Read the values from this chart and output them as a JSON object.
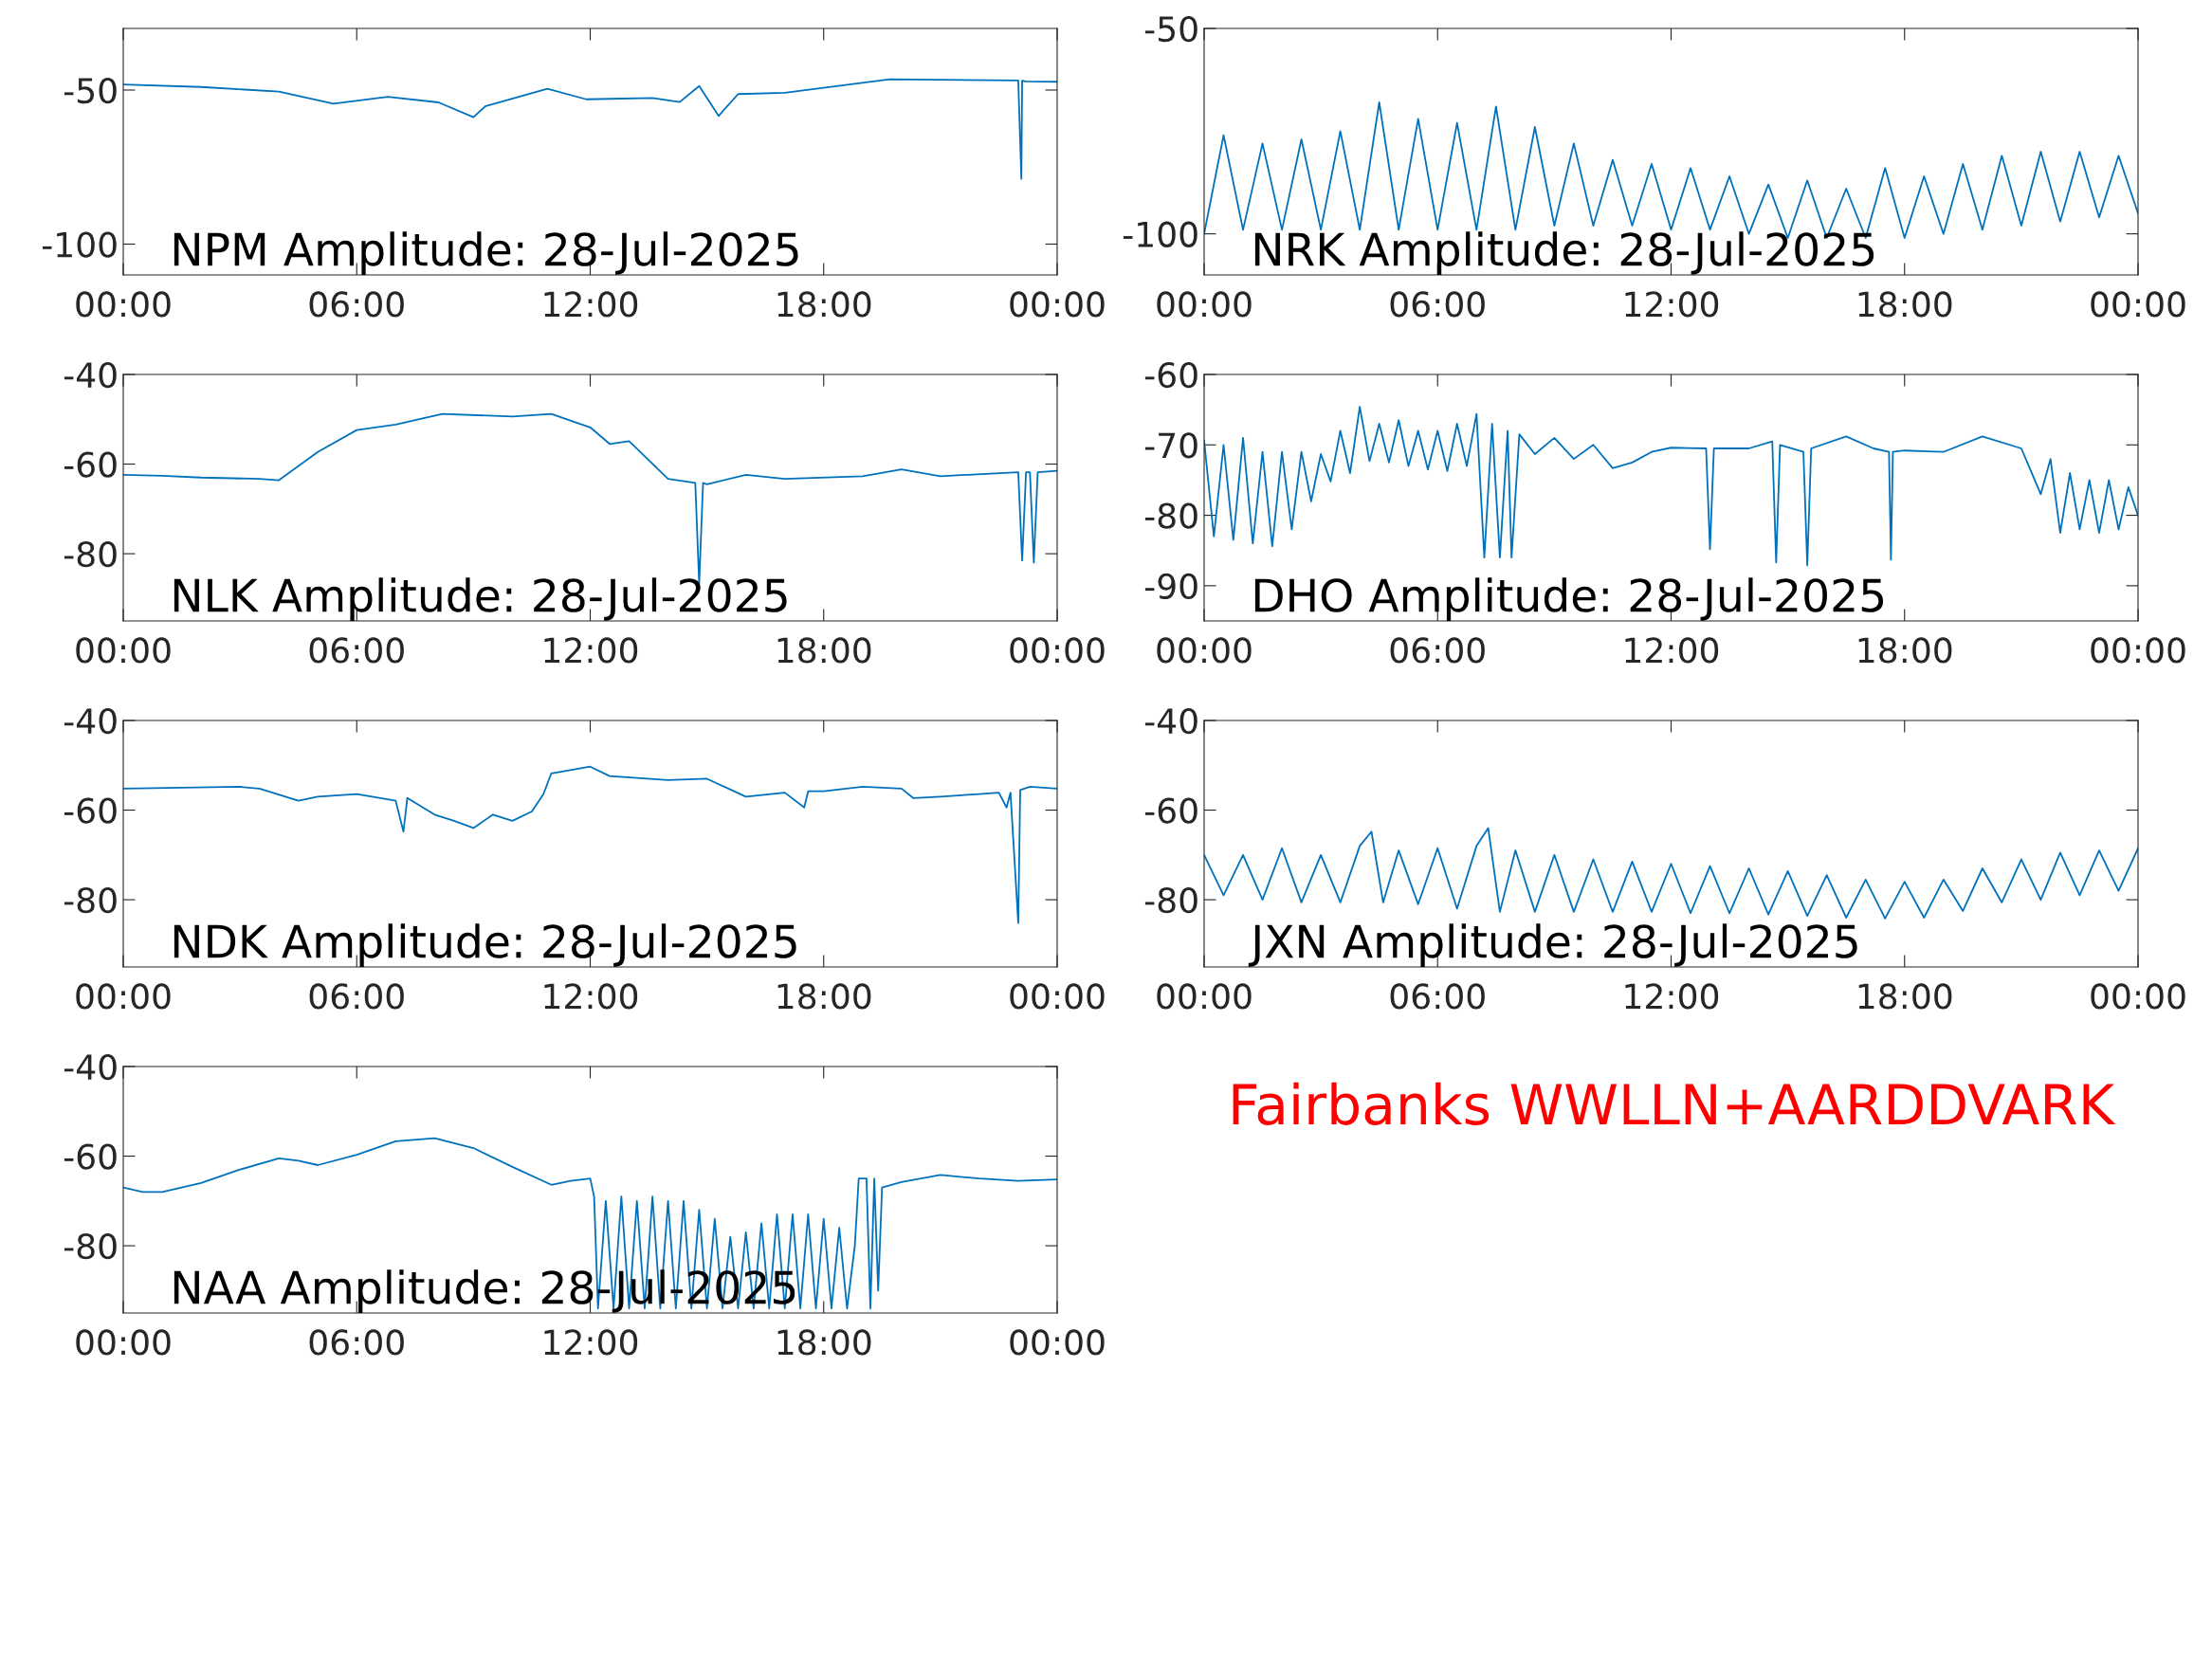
{
  "chart_data": [
    {
      "type": "line",
      "title": "NPM Amplitude: 28-Jul-2025",
      "color": "#0072bd",
      "xlim": [
        0,
        24
      ],
      "xticks": [
        {
          "value": 0,
          "label": "00:00"
        },
        {
          "value": 6,
          "label": "06:00"
        },
        {
          "value": 12,
          "label": "12:00"
        },
        {
          "value": 18,
          "label": "18:00"
        },
        {
          "value": 24,
          "label": "00:00"
        }
      ],
      "ylim": [
        -110,
        -30
      ],
      "yticks": [
        -100,
        -50
      ],
      "x": [
        0,
        2,
        4,
        5.4,
        6.8,
        8.1,
        9.0,
        9.3,
        10.9,
        11.9,
        13.6,
        14.3,
        14.8,
        15.3,
        15.8,
        17,
        19.7,
        23.0,
        23.08,
        23.1,
        23.2,
        24
      ],
      "values": [
        -48.2,
        -49,
        -50.5,
        -54.4,
        -52.2,
        -54,
        -58.8,
        -55.3,
        -49.6,
        -53,
        -52.6,
        -53.9,
        -48.7,
        -58.4,
        -51.3,
        -50.9,
        -46.5,
        -46.9,
        -78.8,
        -47,
        -47.2,
        -47.3
      ]
    },
    {
      "type": "line",
      "title": "NRK Amplitude: 28-Jul-2025",
      "color": "#0072bd",
      "xlim": [
        0,
        24
      ],
      "xticks": [
        {
          "value": 0,
          "label": "00:00"
        },
        {
          "value": 6,
          "label": "06:00"
        },
        {
          "value": 12,
          "label": "12:00"
        },
        {
          "value": 18,
          "label": "18:00"
        },
        {
          "value": 24,
          "label": "00:00"
        }
      ],
      "ylim": [
        -110,
        -50
      ],
      "yticks": [
        -100,
        -50
      ],
      "x": [
        0,
        0.5,
        1,
        1.5,
        2,
        2.5,
        3,
        3.5,
        4,
        4.5,
        5,
        5.5,
        6,
        6.5,
        7,
        7.5,
        8,
        8.5,
        9,
        9.5,
        10,
        10.5,
        11,
        11.5,
        12,
        12.5,
        13,
        13.5,
        14,
        14.5,
        15,
        15.5,
        16,
        16.5,
        17,
        17.5,
        18,
        18.5,
        19,
        19.5,
        20,
        20.5,
        21,
        21.5,
        22,
        22.5,
        23,
        23.5,
        24
      ],
      "values": [
        -100,
        -76,
        -99,
        -78,
        -99,
        -77,
        -99,
        -75,
        -99,
        -68,
        -99,
        -72,
        -99,
        -73,
        -99,
        -69,
        -99,
        -74,
        -98,
        -78,
        -98,
        -82,
        -98,
        -83,
        -99,
        -84,
        -99,
        -86,
        -100,
        -88,
        -101,
        -87,
        -101,
        -89,
        -101,
        -84,
        -101,
        -86,
        -100,
        -83,
        -99,
        -81,
        -98,
        -80,
        -97,
        -80,
        -96,
        -81,
        -95
      ]
    },
    {
      "type": "line",
      "title": "NLK Amplitude: 28-Jul-2025",
      "color": "#0072bd",
      "xlim": [
        0,
        24
      ],
      "xticks": [
        {
          "value": 0,
          "label": "00:00"
        },
        {
          "value": 6,
          "label": "06:00"
        },
        {
          "value": 12,
          "label": "12:00"
        },
        {
          "value": 18,
          "label": "18:00"
        },
        {
          "value": 24,
          "label": "00:00"
        }
      ],
      "ylim": [
        -95,
        -40
      ],
      "yticks": [
        -80,
        -60,
        -40
      ],
      "x": [
        0,
        1,
        2,
        3.5,
        4,
        5,
        6,
        7,
        8.2,
        10,
        11,
        12,
        12.5,
        13,
        14,
        14.7,
        14.8,
        14.9,
        15,
        16,
        17,
        19,
        20,
        21,
        23,
        23.1,
        23.2,
        23.3,
        23.4,
        23.5,
        24
      ],
      "values": [
        -62.4,
        -62.6,
        -63,
        -63.3,
        -63.6,
        -57.3,
        -52.4,
        -51.2,
        -48.8,
        -49.4,
        -48.8,
        -51.8,
        -55.5,
        -54.9,
        -63.3,
        -64.2,
        -86.7,
        -64.2,
        -64.5,
        -62.4,
        -63.3,
        -62.7,
        -61.2,
        -62.7,
        -61.8,
        -81.5,
        -61.8,
        -61.8,
        -82,
        -61.8,
        -61.5
      ]
    },
    {
      "type": "line",
      "title": "DHO Amplitude: 28-Jul-2025",
      "color": "#0072bd",
      "xlim": [
        0,
        24
      ],
      "xticks": [
        {
          "value": 0,
          "label": "00:00"
        },
        {
          "value": 6,
          "label": "06:00"
        },
        {
          "value": 12,
          "label": "12:00"
        },
        {
          "value": 18,
          "label": "18:00"
        },
        {
          "value": 24,
          "label": "00:00"
        }
      ],
      "ylim": [
        -95,
        -60
      ],
      "yticks": [
        -90,
        -80,
        -70,
        -60
      ],
      "x": [
        0,
        0.25,
        0.5,
        0.75,
        1,
        1.25,
        1.5,
        1.75,
        2,
        2.25,
        2.5,
        2.75,
        3,
        3.25,
        3.5,
        3.75,
        4,
        4.25,
        4.5,
        4.75,
        5,
        5.25,
        5.5,
        5.75,
        6,
        6.25,
        6.5,
        6.75,
        7,
        7.2,
        7.4,
        7.6,
        7.8,
        7.9,
        8.1,
        8.5,
        9,
        9.5,
        10,
        10.5,
        11,
        11.5,
        12,
        12.9,
        13.0,
        13.1,
        14,
        14.6,
        14.7,
        14.8,
        15.4,
        15.5,
        15.6,
        16.5,
        17.2,
        17.6,
        17.65,
        17.7,
        18,
        19,
        20,
        21,
        21.5,
        21.75,
        22,
        22.25,
        22.5,
        22.75,
        23,
        23.25,
        23.5,
        23.75,
        24
      ],
      "values": [
        -69.4,
        -83,
        -70,
        -83.5,
        -69,
        -84,
        -71,
        -84.4,
        -71,
        -82,
        -71,
        -78,
        -71.3,
        -75.2,
        -68,
        -74,
        -64.6,
        -72.3,
        -67,
        -72.5,
        -66.5,
        -73,
        -68,
        -73.5,
        -68,
        -73.7,
        -67,
        -73,
        -65.6,
        -86,
        -67,
        -86,
        -68,
        -86,
        -68.5,
        -71.3,
        -69,
        -72,
        -70,
        -73.3,
        -72.5,
        -71,
        -70.4,
        -70.5,
        -84.8,
        -70.5,
        -70.5,
        -69.5,
        -86.7,
        -70,
        -71,
        -87.1,
        -70.5,
        -68.8,
        -70.5,
        -71,
        -86.3,
        -71,
        -70.8,
        -71,
        -68.8,
        -70.5,
        -77,
        -72,
        -82.5,
        -74,
        -82,
        -75,
        -82.5,
        -75,
        -82,
        -76,
        -80
      ]
    },
    {
      "type": "line",
      "title": "NDK Amplitude: 28-Jul-2025",
      "color": "#0072bd",
      "xlim": [
        0,
        24
      ],
      "xticks": [
        {
          "value": 0,
          "label": "00:00"
        },
        {
          "value": 6,
          "label": "06:00"
        },
        {
          "value": 12,
          "label": "12:00"
        },
        {
          "value": 18,
          "label": "18:00"
        },
        {
          "value": 24,
          "label": "00:00"
        }
      ],
      "ylim": [
        -95,
        -40
      ],
      "yticks": [
        -80,
        -60,
        -40
      ],
      "x": [
        0,
        3,
        3.5,
        4.5,
        5,
        6,
        7,
        7.2,
        7.3,
        8,
        8.5,
        9,
        9.5,
        10,
        10.5,
        10.8,
        11,
        12,
        12.5,
        14,
        15,
        16,
        17,
        17.5,
        17.6,
        18,
        19,
        20,
        20.3,
        21,
        22,
        22.5,
        22.7,
        22.8,
        23.0,
        23.05,
        23.3,
        24
      ],
      "values": [
        -55.2,
        -54.8,
        -55.2,
        -57.9,
        -57,
        -56.4,
        -57.9,
        -64.8,
        -57.3,
        -61,
        -62.4,
        -64,
        -61,
        -62.4,
        -60.3,
        -56.4,
        -51.8,
        -50.3,
        -52.4,
        -53.3,
        -53,
        -57,
        -56.1,
        -59.4,
        -55.8,
        -55.8,
        -54.8,
        -55.2,
        -57.3,
        -57,
        -56.4,
        -56.1,
        -59.4,
        -56.1,
        -85.2,
        -55.5,
        -54.8,
        -55.2
      ]
    },
    {
      "type": "line",
      "title": "JXN Amplitude: 28-Jul-2025",
      "color": "#0072bd",
      "xlim": [
        0,
        24
      ],
      "xticks": [
        {
          "value": 0,
          "label": "00:00"
        },
        {
          "value": 6,
          "label": "06:00"
        },
        {
          "value": 12,
          "label": "12:00"
        },
        {
          "value": 18,
          "label": "18:00"
        },
        {
          "value": 24,
          "label": "00:00"
        }
      ],
      "ylim": [
        -95,
        -40
      ],
      "yticks": [
        -80,
        -60,
        -40
      ],
      "x": [
        0,
        0.5,
        1,
        1.5,
        2,
        2.5,
        3,
        3.5,
        4,
        4.3,
        4.6,
        5,
        5.5,
        6,
        6.5,
        7,
        7.3,
        7.6,
        8,
        8.5,
        9,
        9.5,
        10,
        10.5,
        11,
        11.5,
        12,
        12.5,
        13,
        13.5,
        14,
        14.5,
        15,
        15.5,
        16,
        16.5,
        17,
        17.5,
        18,
        18.5,
        19,
        19.5,
        20,
        20.5,
        21,
        21.5,
        22,
        22.5,
        23,
        23.5,
        24
      ],
      "values": [
        -70,
        -79,
        -70,
        -80,
        -68.5,
        -80.6,
        -70,
        -80.6,
        -68,
        -64.8,
        -80.6,
        -69,
        -81,
        -68.5,
        -82,
        -68,
        -64,
        -82.7,
        -69,
        -82.7,
        -70,
        -82.7,
        -71,
        -82.7,
        -71.5,
        -82.7,
        -72,
        -83,
        -72.5,
        -83,
        -73,
        -83.3,
        -73.6,
        -83.6,
        -74.5,
        -84,
        -75.5,
        -84.2,
        -76,
        -84,
        -75.5,
        -82.5,
        -73,
        -80.6,
        -71,
        -80,
        -69.5,
        -79,
        -69,
        -78,
        -68.5
      ]
    },
    {
      "type": "line",
      "title": "NAA Amplitude: 28-Jul-2025",
      "color": "#0072bd",
      "xlim": [
        0,
        24
      ],
      "xticks": [
        {
          "value": 0,
          "label": "00:00"
        },
        {
          "value": 6,
          "label": "06:00"
        },
        {
          "value": 12,
          "label": "12:00"
        },
        {
          "value": 18,
          "label": "18:00"
        },
        {
          "value": 24,
          "label": "00:00"
        }
      ],
      "ylim": [
        -95,
        -40
      ],
      "yticks": [
        -80,
        -60,
        -40
      ],
      "x": [
        0,
        0.5,
        1,
        1.5,
        2,
        3,
        4,
        4.5,
        5,
        6,
        7,
        8,
        9,
        10,
        11,
        11.5,
        12,
        12.1,
        12.2,
        12.4,
        12.6,
        12.8,
        13.0,
        13.2,
        13.4,
        13.6,
        13.8,
        14.0,
        14.2,
        14.4,
        14.6,
        14.8,
        15.0,
        15.2,
        15.4,
        15.6,
        15.8,
        16.0,
        16.2,
        16.4,
        16.6,
        16.8,
        17.0,
        17.2,
        17.4,
        17.6,
        17.8,
        18.0,
        18.2,
        18.4,
        18.6,
        18.8,
        18.9,
        19.1,
        19.2,
        19.3,
        19.4,
        19.5,
        20,
        21,
        22,
        23,
        24
      ],
      "values": [
        -67,
        -68,
        -68,
        -67,
        -66,
        -63,
        -60.5,
        -61,
        -62,
        -59.7,
        -56.7,
        -56,
        -58.2,
        -62.4,
        -66.4,
        -65.5,
        -65,
        -69,
        -94,
        -70,
        -94,
        -69,
        -94,
        -70,
        -94,
        -69,
        -94,
        -70,
        -94,
        -70,
        -94,
        -72,
        -94,
        -74,
        -94,
        -78,
        -94,
        -77,
        -94,
        -75,
        -94,
        -73,
        -94,
        -73,
        -94,
        -73,
        -94,
        -74,
        -94,
        -76,
        -94,
        -80,
        -65,
        -65,
        -94,
        -65,
        -90,
        -67,
        -65.8,
        -64.2,
        -65,
        -65.5,
        -65.2
      ]
    },
    {
      "type": "other",
      "annotations": [
        "Fairbanks WWLLN+AARDDVARK"
      ]
    }
  ]
}
